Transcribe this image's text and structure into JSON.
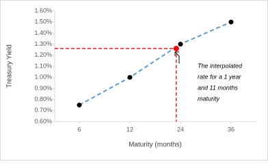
{
  "chart_data": {
    "type": "scatter",
    "x_label": "Maturity (months)",
    "y_label": "Treasury Yield",
    "xticks": [
      6,
      12,
      24,
      36
    ],
    "ylim": [
      0.6,
      1.6
    ],
    "yticks": [
      {
        "value": 0.6,
        "label": "0.60%"
      },
      {
        "value": 0.7,
        "label": "0.70%"
      },
      {
        "value": 0.8,
        "label": "0.80%"
      },
      {
        "value": 0.9,
        "label": "0.90%"
      },
      {
        "value": 1.0,
        "label": "1.00%"
      },
      {
        "value": 1.1,
        "label": "1.10%"
      },
      {
        "value": 1.2,
        "label": "1.20%"
      },
      {
        "value": 1.3,
        "label": "1.30%"
      },
      {
        "value": 1.4,
        "label": "1.40%"
      },
      {
        "value": 1.5,
        "label": "1.50%"
      },
      {
        "value": 1.6,
        "label": "1.60%"
      }
    ],
    "series": [
      {
        "color": "#000000",
        "line_color": "#5b9bd5",
        "x": [
          6,
          12,
          24,
          36
        ],
        "values": [
          0.75,
          1.0,
          1.3,
          1.5
        ]
      }
    ],
    "interpolated": {
      "x": 23,
      "value": 1.26,
      "color": "#ff0000"
    },
    "annotation": [
      "The interpolated",
      "rate for a 1 year",
      "and 11 months",
      "maturity"
    ]
  }
}
